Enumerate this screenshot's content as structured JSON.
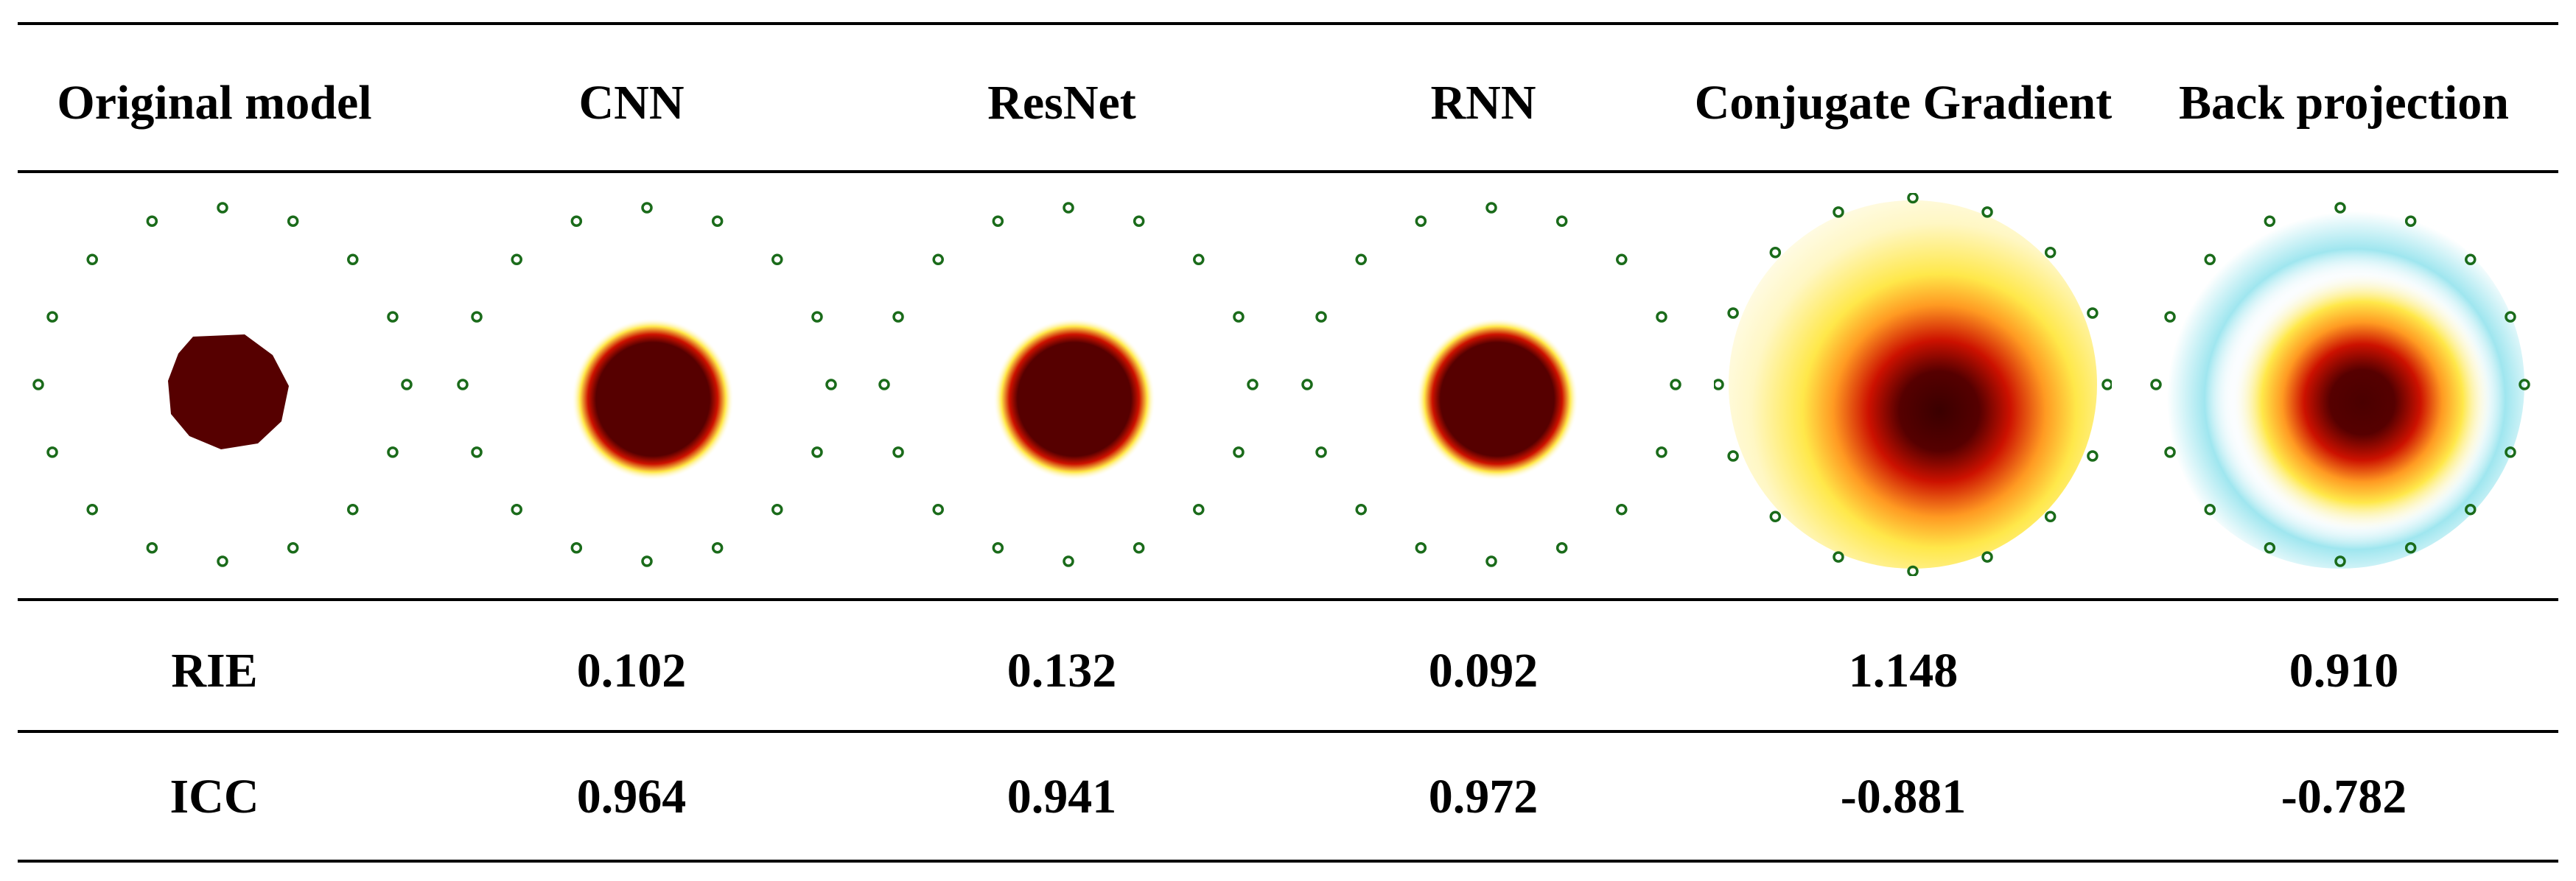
{
  "table": {
    "headers": [
      "Original model",
      "CNN",
      "ResNet",
      "RNN",
      "Conjugate Gradient",
      "Back projection"
    ],
    "rows": [
      {
        "label": "RIE",
        "values": [
          "0.102",
          "0.132",
          "0.092",
          "1.148",
          "0.910"
        ]
      },
      {
        "label": "ICC",
        "values": [
          "0.964",
          "0.941",
          "0.972",
          "-0.881",
          "-0.782"
        ]
      }
    ]
  },
  "images": [
    {
      "method": "Original model",
      "style": "sharp"
    },
    {
      "method": "CNN",
      "style": "narrow-halo"
    },
    {
      "method": "ResNet",
      "style": "narrow-halo"
    },
    {
      "method": "RNN",
      "style": "narrow-halo"
    },
    {
      "method": "Conjugate Gradient",
      "style": "wide-diffuse"
    },
    {
      "method": "Back projection",
      "style": "diffuse-with-negative-ring"
    }
  ],
  "colors": {
    "inclusion": "#560000",
    "red": "#cc1100",
    "yellow": "#ffe84a",
    "negative": "#9fe6ef",
    "electrode": "#1a6b1a",
    "rule": "#000000"
  }
}
